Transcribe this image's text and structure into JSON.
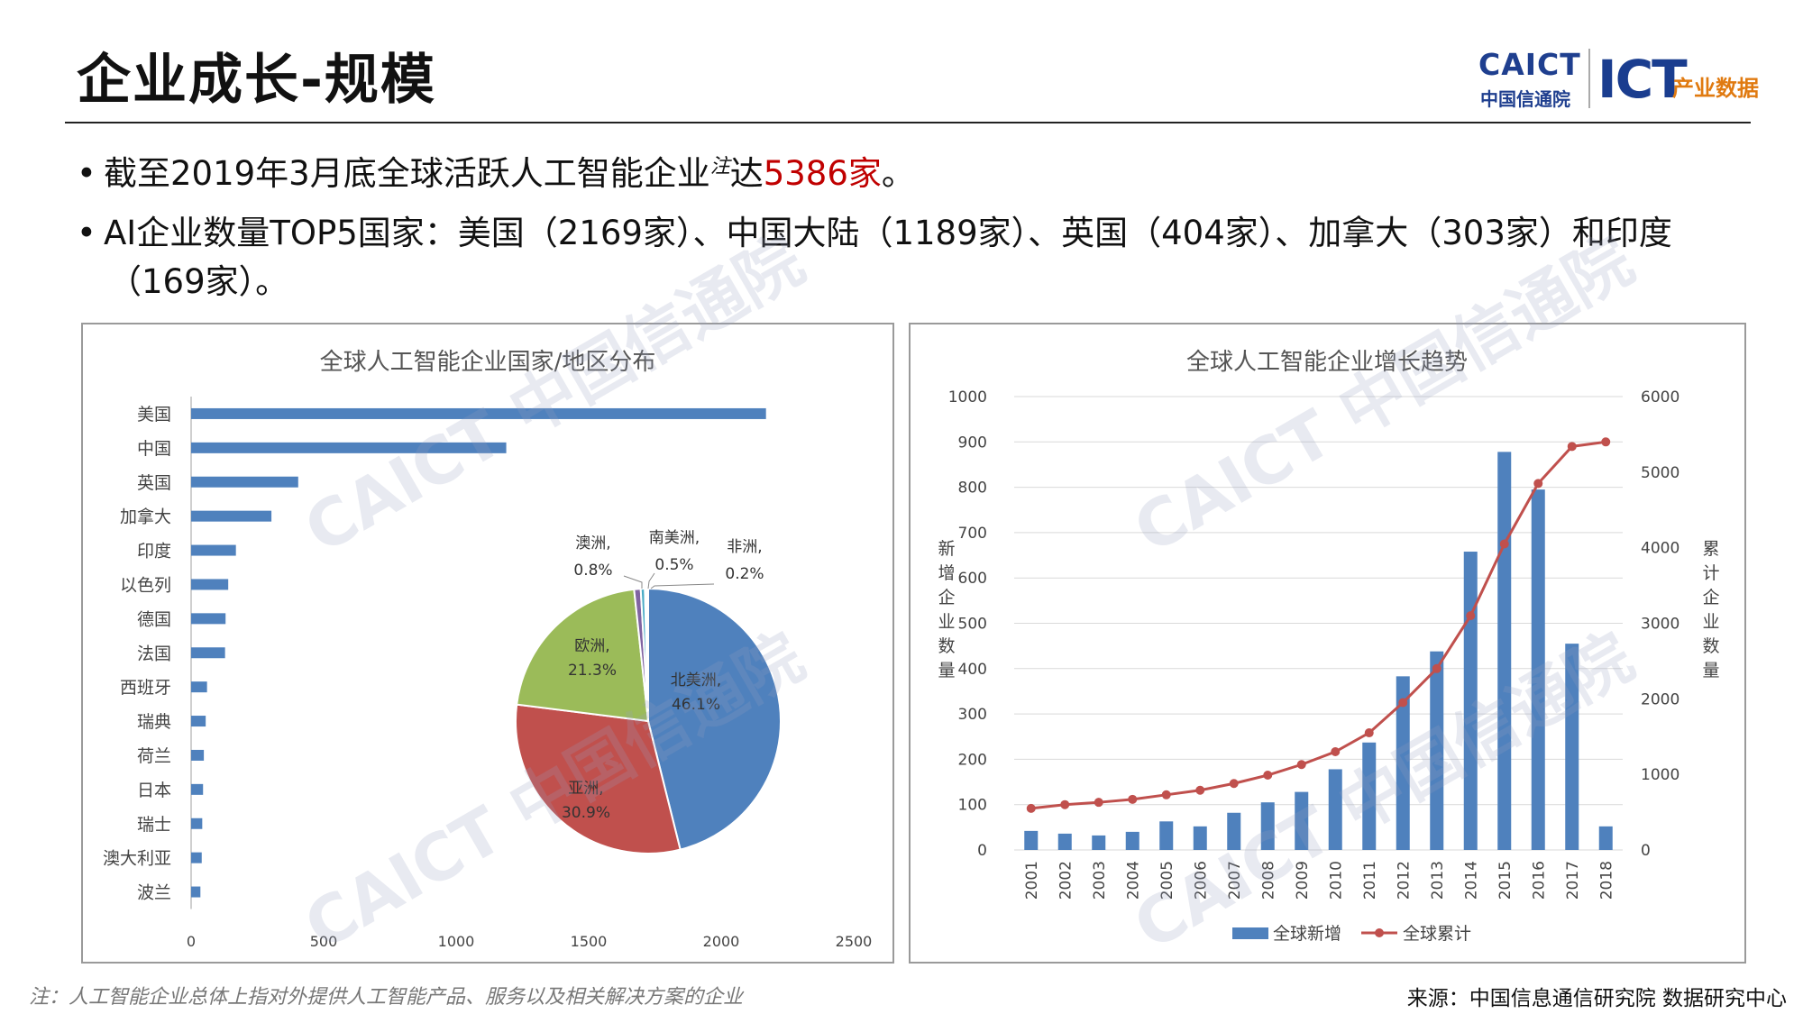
{
  "header": {
    "title": "企业成长-规模",
    "logo_caict": "CAICT",
    "logo_cn": "中国信通院",
    "logo_ict": "ICT",
    "logo_ict_sub": "产业数据"
  },
  "bullets": {
    "b1_pre": "截至2019年3月底全球活跃人工智能企业",
    "b1_sup": "注",
    "b1_mid": "达",
    "b1_red": "5386家",
    "b1_post": "。",
    "b2_line1": "AI企业数量TOP5国家：美国（2169家）、中国大陆（1189家）、英国（404家）、加拿大（303家）和印度",
    "b2_line2": "（169家）。"
  },
  "watermark": {
    "text": "CAICT 中国信通院"
  },
  "colors": {
    "bar_blue": "#4f81bd",
    "line_red": "#c0504d",
    "pie_green": "#9bbb59",
    "pie_purple": "#8064a2",
    "pie_teal": "#4bacc6",
    "pie_orange": "#f79646",
    "highlight_red": "#c00000"
  },
  "chart_data": [
    {
      "type": "bar",
      "orientation": "horizontal",
      "title": "全球人工智能企业国家/地区分布",
      "categories": [
        "美国",
        "中国",
        "英国",
        "加拿大",
        "印度",
        "以色列",
        "德国",
        "法国",
        "西班牙",
        "瑞典",
        "荷兰",
        "日本",
        "瑞士",
        "澳大利亚",
        "波兰"
      ],
      "values": [
        2169,
        1189,
        404,
        303,
        169,
        140,
        130,
        128,
        60,
        55,
        48,
        45,
        42,
        40,
        35
      ],
      "xlim": [
        0,
        2500
      ],
      "xticks": [
        "0",
        "500",
        "1000",
        "1500",
        "2000",
        "2500"
      ],
      "grid": false
    },
    {
      "type": "pie",
      "inset": true,
      "slices": [
        {
          "label": "北美洲,",
          "pct": "46.1%",
          "value": 46.1
        },
        {
          "label": "亚洲,",
          "pct": "30.9%",
          "value": 30.9
        },
        {
          "label": "欧洲,",
          "pct": "21.3%",
          "value": 21.3
        },
        {
          "label": "澳洲,",
          "pct": "0.8%",
          "value": 0.8
        },
        {
          "label": "南美洲,",
          "pct": "0.5%",
          "value": 0.5
        },
        {
          "label": "非洲,",
          "pct": "0.2%",
          "value": 0.2
        }
      ]
    },
    {
      "type": "bar+line",
      "title": "全球人工智能企业增长趋势",
      "x": [
        "2001",
        "2002",
        "2003",
        "2004",
        "2005",
        "2006",
        "2007",
        "2008",
        "2009",
        "2010",
        "2011",
        "2012",
        "2013",
        "2014",
        "2015",
        "2016",
        "2017",
        "2018"
      ],
      "series": [
        {
          "name": "全球新增",
          "type": "bar",
          "axis": "left",
          "values": [
            42,
            36,
            32,
            40,
            63,
            52,
            82,
            105,
            128,
            178,
            237,
            383,
            438,
            658,
            878,
            795,
            455,
            52
          ]
        },
        {
          "name": "全球累计",
          "type": "line",
          "axis": "right",
          "values": [
            550,
            600,
            630,
            670,
            730,
            790,
            880,
            990,
            1130,
            1300,
            1550,
            1950,
            2400,
            3100,
            4050,
            4850,
            5340,
            5400
          ]
        }
      ],
      "ylabel_left": "新增企业数量",
      "ylabel_right": "累计企业数量",
      "ylim_left": [
        0,
        1000
      ],
      "ylim_right": [
        0,
        6000
      ],
      "yticks_left": [
        "0",
        "100",
        "200",
        "300",
        "400",
        "500",
        "600",
        "700",
        "800",
        "900",
        "1000"
      ],
      "yticks_right": [
        "0",
        "1000",
        "2000",
        "3000",
        "4000",
        "5000",
        "6000"
      ],
      "legend": "bottom",
      "grid": true
    }
  ],
  "footer": {
    "note": "注：人工智能企业总体上指对外提供人工智能产品、服务以及相关解决方案的企业",
    "source": "来源：中国信息通信研究院 数据研究中心"
  }
}
